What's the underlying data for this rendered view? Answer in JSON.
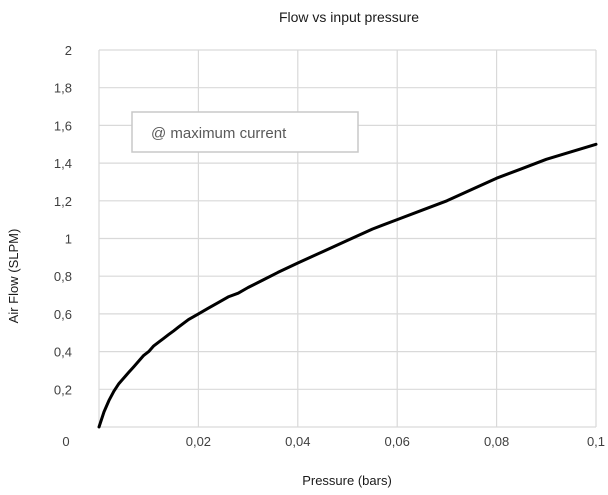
{
  "chart_data": {
    "type": "line",
    "title": "Flow vs input pressure",
    "xlabel": "Pressure (bars)",
    "ylabel": "Air Flow (SLPM)",
    "xlim": [
      0,
      0.1
    ],
    "ylim": [
      0,
      2
    ],
    "x_ticks": [
      "0",
      "0,02",
      "0,04",
      "0,06",
      "0,08",
      "0,1"
    ],
    "y_ticks": [
      "0,2",
      "0,4",
      "0,6",
      "0,8",
      "1",
      "1,2",
      "1,4",
      "1,6",
      "1,8",
      "2"
    ],
    "grid": true,
    "annotation": "@ maximum current",
    "series": [
      {
        "color": "#000000",
        "x": [
          0,
          0.001,
          0.002,
          0.003,
          0.004,
          0.005,
          0.006,
          0.007,
          0.008,
          0.009,
          0.01,
          0.011,
          0.012,
          0.013,
          0.014,
          0.015,
          0.016,
          0.018,
          0.02,
          0.022,
          0.024,
          0.026,
          0.028,
          0.03,
          0.033,
          0.036,
          0.04,
          0.045,
          0.05,
          0.055,
          0.06,
          0.065,
          0.07,
          0.075,
          0.08,
          0.085,
          0.09,
          0.095,
          0.1
        ],
        "y": [
          0,
          0.08,
          0.14,
          0.19,
          0.23,
          0.26,
          0.29,
          0.32,
          0.35,
          0.38,
          0.4,
          0.43,
          0.45,
          0.47,
          0.49,
          0.51,
          0.53,
          0.57,
          0.6,
          0.63,
          0.66,
          0.69,
          0.71,
          0.74,
          0.78,
          0.82,
          0.87,
          0.93,
          0.99,
          1.05,
          1.1,
          1.15,
          1.2,
          1.26,
          1.32,
          1.37,
          1.42,
          1.46,
          1.5
        ]
      }
    ]
  }
}
